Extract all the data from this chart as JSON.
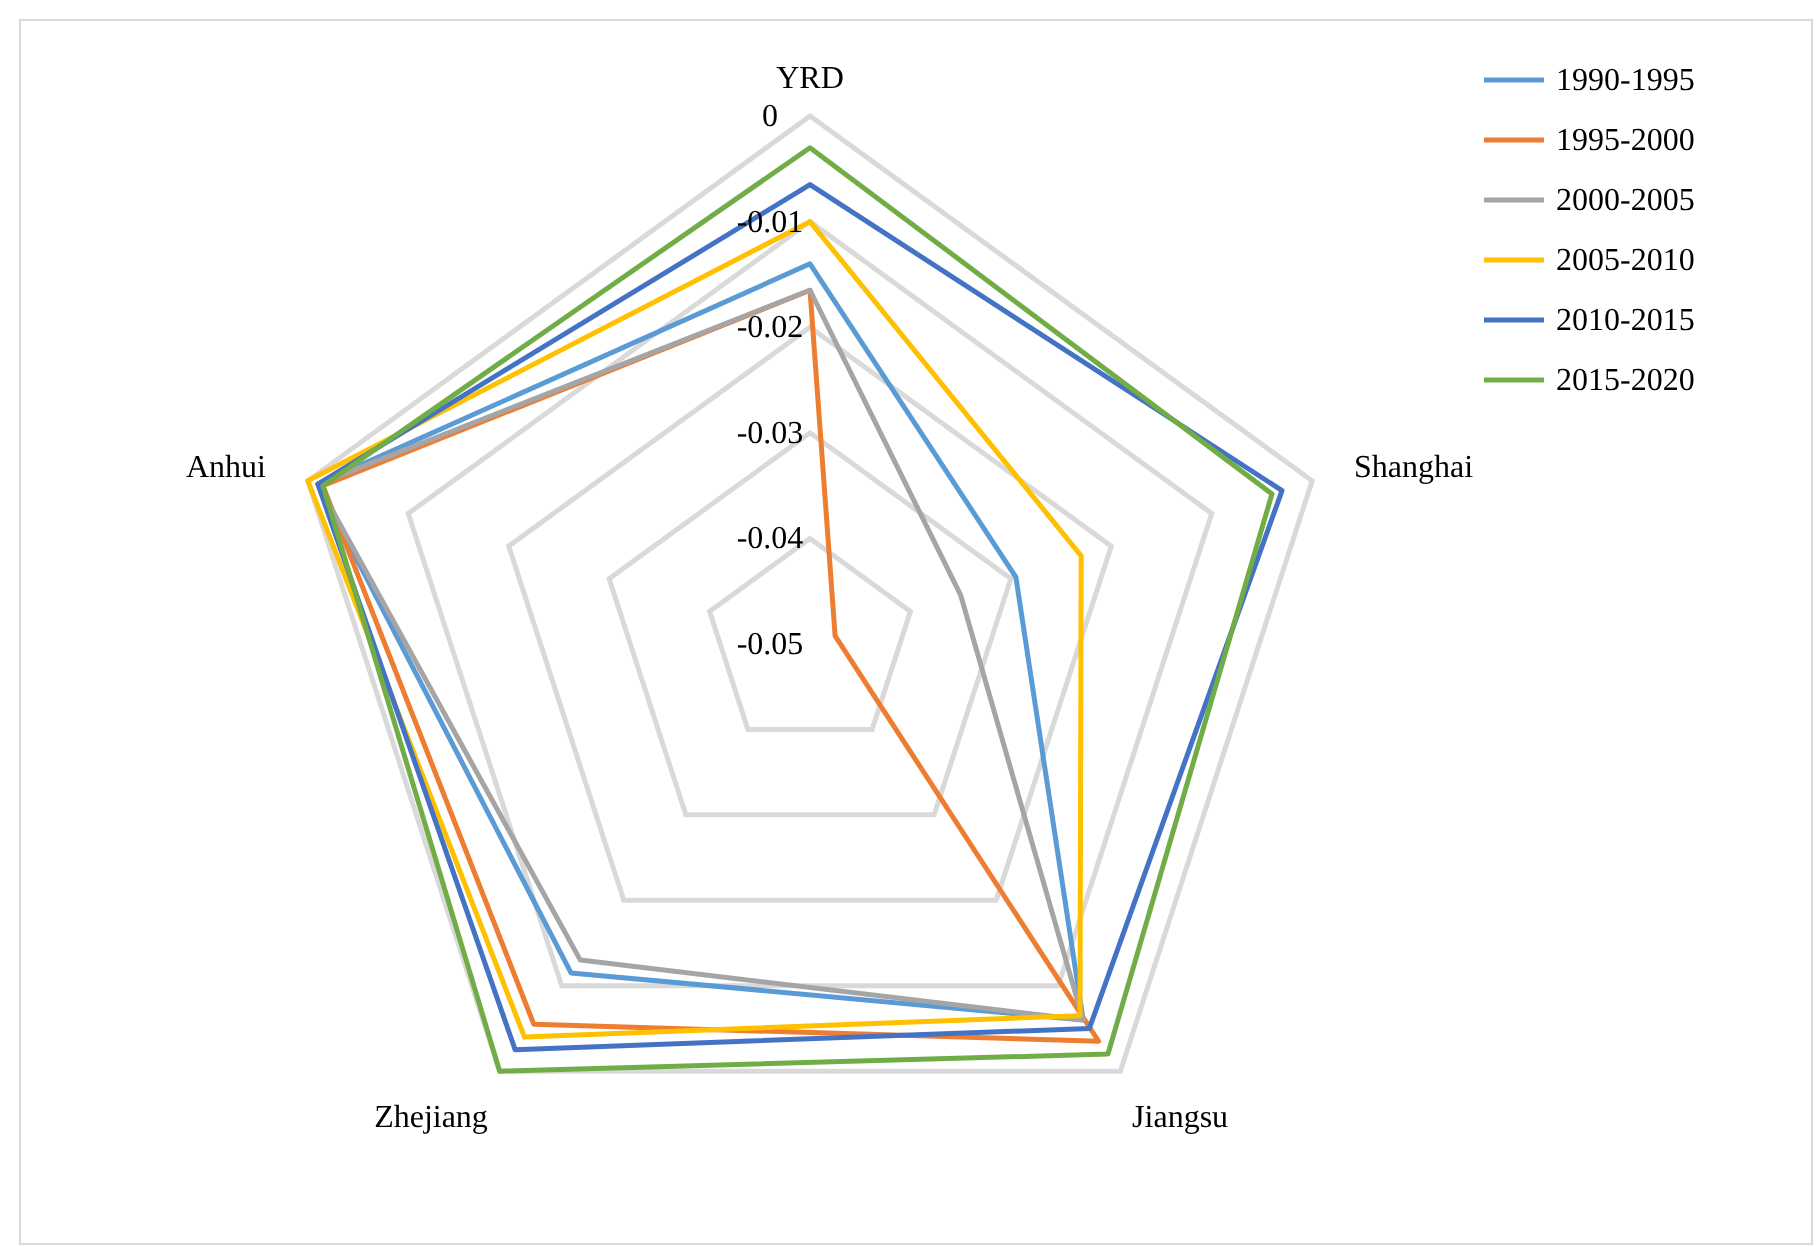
{
  "chart_data": {
    "type": "radar",
    "categories": [
      "YRD",
      "Shanghai",
      "Jiangsu",
      "Zhejiang",
      "Anhui"
    ],
    "ylim": [
      -0.05,
      0
    ],
    "yticks": [
      -0.05,
      -0.04,
      -0.03,
      -0.02,
      -0.01,
      0
    ],
    "grid": true,
    "legend": "top right",
    "series": [
      {
        "name": "1990-1995",
        "color": "#5b9bd5",
        "values": [
          -0.014,
          -0.0295,
          -0.006,
          -0.0115,
          -0.001
        ]
      },
      {
        "name": "1995-2000",
        "color": "#ed7d31",
        "values": [
          -0.0165,
          -0.0475,
          -0.0035,
          -0.0055,
          -0.0015
        ]
      },
      {
        "name": "2000-2005",
        "color": "#a5a5a5",
        "values": [
          -0.0165,
          -0.035,
          -0.006,
          -0.013,
          -0.001
        ]
      },
      {
        "name": "2005-2010",
        "color": "#ffc000",
        "values": [
          -0.01,
          -0.023,
          -0.0065,
          -0.004,
          0
        ]
      },
      {
        "name": "2010-2015",
        "color": "#4472c4",
        "values": [
          -0.0065,
          -0.003,
          -0.005,
          -0.0025,
          -0.001
        ]
      },
      {
        "name": "2015-2020",
        "color": "#70ad47",
        "values": [
          -0.003,
          -0.004,
          -0.002,
          0,
          -0.0015
        ]
      }
    ]
  }
}
